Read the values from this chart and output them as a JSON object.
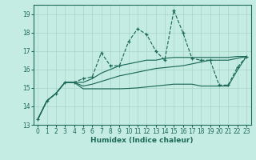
{
  "xlabel": "Humidex (Indice chaleur)",
  "xlim": [
    -0.5,
    23.5
  ],
  "ylim": [
    13,
    19.5
  ],
  "yticks": [
    13,
    14,
    15,
    16,
    17,
    18,
    19
  ],
  "xticks": [
    0,
    1,
    2,
    3,
    4,
    5,
    6,
    7,
    8,
    9,
    10,
    11,
    12,
    13,
    14,
    15,
    16,
    17,
    18,
    19,
    20,
    21,
    22,
    23
  ],
  "bg_color": "#c5ece2",
  "grid_color": "#a8d4c8",
  "line_color": "#1e6b5a",
  "jagged": [
    13.3,
    14.3,
    14.7,
    15.3,
    15.3,
    15.5,
    15.6,
    16.9,
    16.2,
    16.2,
    17.5,
    18.2,
    17.9,
    17.0,
    16.5,
    19.2,
    18.0,
    16.6,
    16.5,
    16.5,
    15.15,
    15.15,
    16.1,
    16.7
  ],
  "upper_env": [
    13.3,
    14.3,
    14.7,
    15.3,
    15.3,
    15.3,
    15.5,
    15.8,
    16.0,
    16.2,
    16.3,
    16.4,
    16.5,
    16.5,
    16.6,
    16.65,
    16.65,
    16.65,
    16.65,
    16.65,
    16.65,
    16.65,
    16.7,
    16.7
  ],
  "mid_env": [
    13.3,
    14.3,
    14.7,
    15.3,
    15.3,
    15.1,
    15.2,
    15.35,
    15.5,
    15.65,
    15.75,
    15.85,
    15.95,
    16.05,
    16.1,
    16.15,
    16.2,
    16.3,
    16.4,
    16.5,
    16.5,
    16.5,
    16.6,
    16.7
  ],
  "lower_env": [
    13.3,
    14.3,
    14.7,
    15.3,
    15.3,
    14.95,
    14.95,
    14.95,
    14.95,
    14.95,
    14.97,
    15.0,
    15.05,
    15.1,
    15.15,
    15.2,
    15.2,
    15.2,
    15.1,
    15.1,
    15.1,
    15.1,
    15.95,
    16.7
  ]
}
